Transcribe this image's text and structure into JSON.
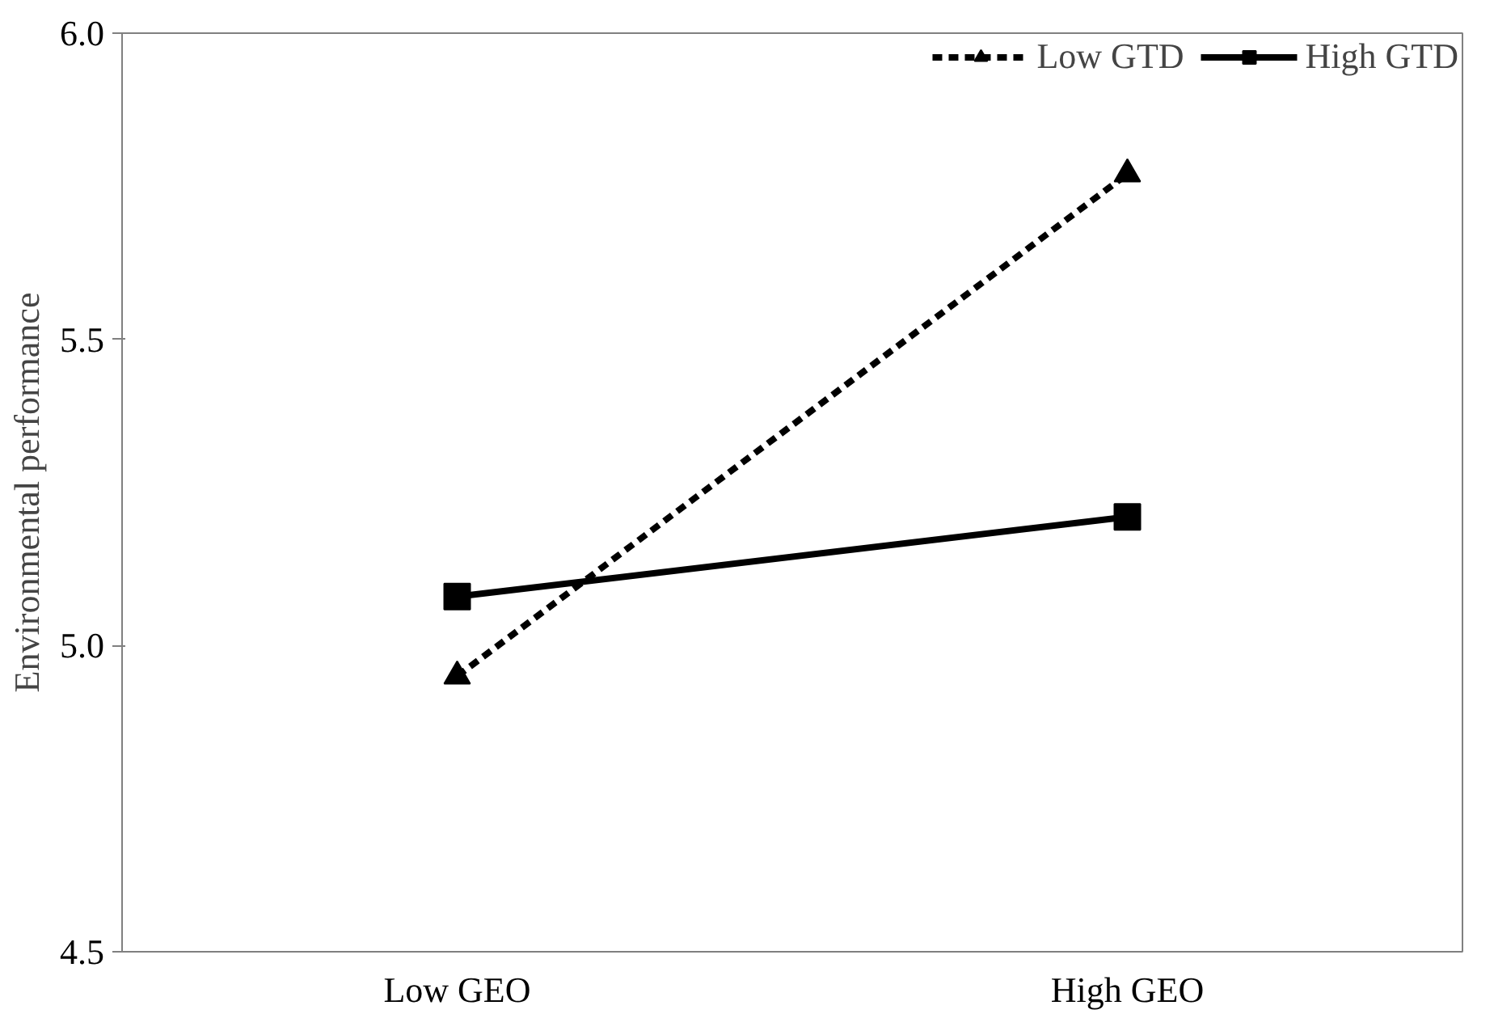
{
  "chart_data": {
    "type": "line",
    "ylabel": "Environmental performance",
    "categories": [
      "Low GEO",
      "High GEO"
    ],
    "series": [
      {
        "name": "Low GTD",
        "color": "#000000",
        "values": [
          4.95,
          5.77
        ],
        "marker": "triangle",
        "line_style": "dashed"
      },
      {
        "name": "High GTD",
        "color": "#000000",
        "values": [
          5.08,
          5.21
        ],
        "marker": "square",
        "line_style": "solid"
      }
    ],
    "ylim": [
      4.5,
      6.0
    ],
    "yticks": [
      {
        "value": 4.5,
        "label": "4.5"
      },
      {
        "value": 5.0,
        "label": "5.0"
      },
      {
        "value": 5.5,
        "label": "5.5"
      },
      {
        "value": 6.0,
        "label": "6.0"
      }
    ],
    "grid": false,
    "legend": "top right"
  }
}
